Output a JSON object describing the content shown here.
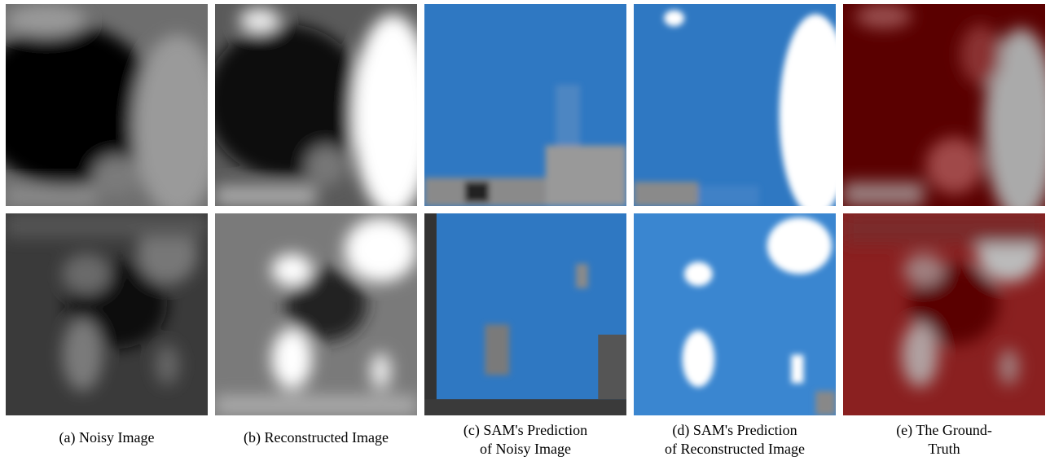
{
  "panels": [
    {
      "caption": [
        "(a) Noisy Image"
      ]
    },
    {
      "caption": [
        "(b) Reconstructed Image"
      ]
    },
    {
      "caption": [
        "(c) SAM's Prediction",
        "of Noisy Image"
      ]
    },
    {
      "caption": [
        "(d) SAM's Prediction",
        "of Reconstructed Image"
      ]
    },
    {
      "caption": [
        "(e) The Ground-",
        "Truth"
      ]
    }
  ]
}
